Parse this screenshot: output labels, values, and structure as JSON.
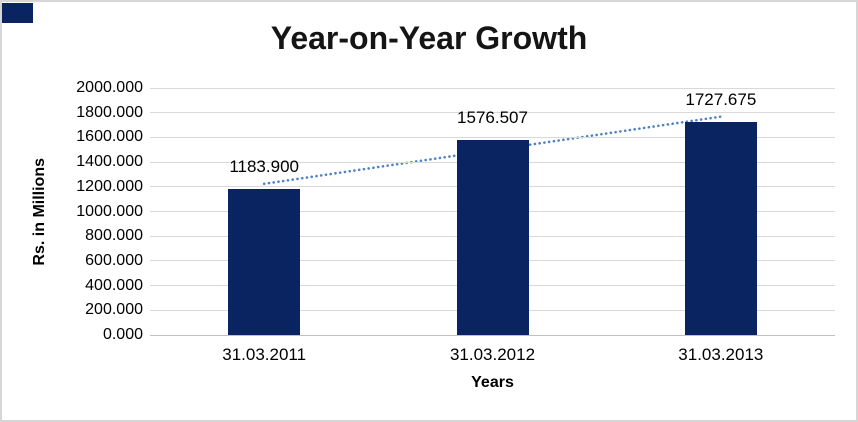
{
  "window": {
    "background": "#ffffff",
    "frame_border_color": "#d6d6d6"
  },
  "chart_data": {
    "type": "bar",
    "title": "Year-on-Year Growth",
    "xlabel": "Years",
    "ylabel": "Rs. in Millions",
    "categories": [
      "31.03.2011",
      "31.03.2012",
      "31.03.2013"
    ],
    "values": [
      1183.9,
      1576.507,
      1727.675
    ],
    "data_labels": [
      "1183.900",
      "1576.507",
      "1727.675"
    ],
    "ylim": [
      0,
      2000
    ],
    "y_major_unit": 200,
    "y_tick_decimals": 3,
    "grid": true,
    "legend": "none",
    "bar_color": "#0a2462",
    "gridline_color": "#d9d9d9",
    "axis_line_color": "#c0c0c0",
    "text_color": "#000000",
    "trendline": {
      "type": "linear",
      "dash": "dotted",
      "color": "#4e82c2"
    }
  }
}
